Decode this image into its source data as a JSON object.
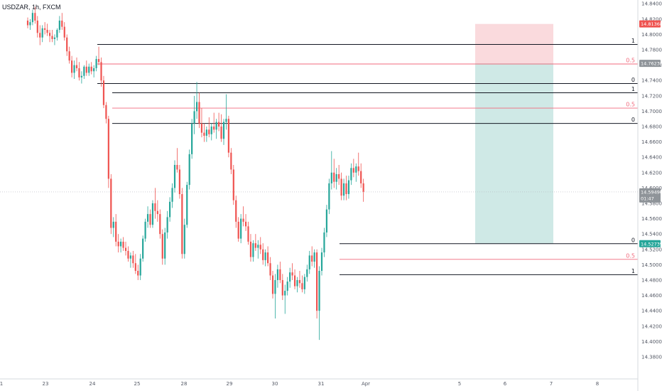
{
  "header": {
    "symbol": "USDZAR, 1h, FXCM"
  },
  "colors": {
    "up": "#26a69a",
    "down": "#ef5350",
    "fib_line": "#131722",
    "fib_mid": "#f0697c",
    "stop_zone": "#fadadd",
    "target_zone": "#cfe9e6",
    "price_badge": "#8f9499"
  },
  "chart_data": {
    "type": "candlestick",
    "x_ticks": [
      "1",
      "23",
      "24",
      "25",
      "28",
      "29",
      "30",
      "31",
      "Apr",
      "5",
      "6",
      "7",
      "8"
    ],
    "y_ticks": [
      "14.84000",
      "14.82000",
      "14.80000",
      "14.78000",
      "14.76000",
      "14.74000",
      "14.72000",
      "14.70000",
      "14.68000",
      "14.66000",
      "14.64000",
      "14.62000",
      "14.60000",
      "14.58000",
      "14.56000",
      "14.54000",
      "14.52000",
      "14.50000",
      "14.48000",
      "14.46000",
      "14.44000",
      "14.42000",
      "14.40000",
      "14.38000"
    ],
    "ylim": [
      14.373,
      14.843
    ],
    "current_price": {
      "value": "14.59490",
      "countdown": "01:47"
    },
    "position": {
      "stop": "14.81368",
      "entry": "14.76236",
      "target": "14.52739"
    },
    "fib_levels": [
      {
        "label": "1",
        "price": 14.787
      },
      {
        "label": "0.5",
        "price": 14.7615
      },
      {
        "label": "0",
        "price": 14.736
      },
      {
        "label": "1",
        "price": 14.724
      },
      {
        "label": "0.5",
        "price": 14.704
      },
      {
        "label": "0",
        "price": 14.684
      },
      {
        "label": "0",
        "price": 14.5274
      },
      {
        "label": "0.5",
        "price": 14.507
      },
      {
        "label": "1",
        "price": 14.487
      }
    ],
    "candles": [
      [
        14.818,
        14.822,
        14.808,
        14.812
      ],
      [
        14.812,
        14.82,
        14.806,
        14.816
      ],
      [
        14.816,
        14.832,
        14.812,
        14.828
      ],
      [
        14.828,
        14.836,
        14.814,
        14.818
      ],
      [
        14.818,
        14.824,
        14.796,
        14.802
      ],
      [
        14.802,
        14.812,
        14.786,
        14.796
      ],
      [
        14.796,
        14.812,
        14.79,
        14.808
      ],
      [
        14.808,
        14.816,
        14.8,
        14.806
      ],
      [
        14.806,
        14.814,
        14.798,
        14.802
      ],
      [
        14.802,
        14.806,
        14.79,
        14.798
      ],
      [
        14.798,
        14.806,
        14.79,
        14.794
      ],
      [
        14.794,
        14.8,
        14.786,
        14.796
      ],
      [
        14.796,
        14.808,
        14.792,
        14.806
      ],
      [
        14.806,
        14.824,
        14.802,
        14.818
      ],
      [
        14.818,
        14.828,
        14.806,
        14.81
      ],
      [
        14.81,
        14.816,
        14.792,
        14.796
      ],
      [
        14.796,
        14.8,
        14.772,
        14.778
      ],
      [
        14.778,
        14.784,
        14.762,
        14.766
      ],
      [
        14.766,
        14.772,
        14.744,
        14.75
      ],
      [
        14.75,
        14.766,
        14.742,
        14.76
      ],
      [
        14.76,
        14.77,
        14.752,
        14.756
      ],
      [
        14.756,
        14.764,
        14.74,
        14.744
      ],
      [
        14.744,
        14.752,
        14.736,
        14.746
      ],
      [
        14.746,
        14.76,
        14.742,
        14.758
      ],
      [
        14.758,
        14.766,
        14.746,
        14.75
      ],
      [
        14.75,
        14.762,
        14.746,
        14.758
      ],
      [
        14.758,
        14.764,
        14.748,
        14.752
      ],
      [
        14.752,
        14.76,
        14.744,
        14.756
      ],
      [
        14.756,
        14.772,
        14.752,
        14.768
      ],
      [
        14.768,
        14.784,
        14.76,
        14.764
      ],
      [
        14.764,
        14.77,
        14.732,
        14.74
      ],
      [
        14.74,
        14.746,
        14.704,
        14.708
      ],
      [
        14.708,
        14.712,
        14.684,
        14.69
      ],
      [
        14.69,
        14.694,
        14.6,
        14.612
      ],
      [
        14.612,
        14.618,
        14.54,
        14.548
      ],
      [
        14.548,
        14.562,
        14.536,
        14.556
      ],
      [
        14.556,
        14.566,
        14.524,
        14.53
      ],
      [
        14.53,
        14.54,
        14.516,
        14.524
      ],
      [
        14.524,
        14.534,
        14.516,
        14.53
      ],
      [
        14.53,
        14.536,
        14.518,
        14.522
      ],
      [
        14.522,
        14.53,
        14.512,
        14.518
      ],
      [
        14.518,
        14.524,
        14.504,
        14.508
      ],
      [
        14.508,
        14.516,
        14.496,
        14.512
      ],
      [
        14.512,
        14.518,
        14.496,
        14.502
      ],
      [
        14.502,
        14.514,
        14.488,
        14.492
      ],
      [
        14.492,
        14.5,
        14.48,
        14.486
      ],
      [
        14.486,
        14.514,
        14.48,
        14.508
      ],
      [
        14.508,
        14.538,
        14.504,
        14.534
      ],
      [
        14.534,
        14.56,
        14.53,
        14.556
      ],
      [
        14.556,
        14.576,
        14.548,
        14.566
      ],
      [
        14.566,
        14.572,
        14.548,
        14.552
      ],
      [
        14.552,
        14.584,
        14.548,
        14.58
      ],
      [
        14.58,
        14.6,
        14.56,
        14.57
      ],
      [
        14.57,
        14.584,
        14.556,
        14.566
      ],
      [
        14.566,
        14.572,
        14.534,
        14.54
      ],
      [
        14.54,
        14.546,
        14.5,
        14.508
      ],
      [
        14.508,
        14.548,
        14.5,
        14.542
      ],
      [
        14.542,
        14.57,
        14.534,
        14.562
      ],
      [
        14.562,
        14.588,
        14.556,
        14.582
      ],
      [
        14.582,
        14.606,
        14.574,
        14.6
      ],
      [
        14.6,
        14.636,
        14.594,
        14.63
      ],
      [
        14.63,
        14.652,
        14.62,
        14.624
      ],
      [
        14.624,
        14.63,
        14.586,
        14.592
      ],
      [
        14.592,
        14.6,
        14.508,
        14.514
      ],
      [
        14.514,
        14.56,
        14.508,
        14.552
      ],
      [
        14.552,
        14.608,
        14.548,
        14.604
      ],
      [
        14.604,
        14.65,
        14.598,
        14.644
      ],
      [
        14.644,
        14.69,
        14.638,
        14.684
      ],
      [
        14.684,
        14.72,
        14.67,
        14.7
      ],
      [
        14.7,
        14.738,
        14.69,
        14.712
      ],
      [
        14.712,
        14.724,
        14.678,
        14.684
      ],
      [
        14.684,
        14.704,
        14.666,
        14.672
      ],
      [
        14.672,
        14.684,
        14.66,
        14.668
      ],
      [
        14.668,
        14.68,
        14.66,
        14.676
      ],
      [
        14.676,
        14.692,
        14.666,
        14.67
      ],
      [
        14.67,
        14.684,
        14.662,
        14.68
      ],
      [
        14.68,
        14.698,
        14.672,
        14.676
      ],
      [
        14.676,
        14.69,
        14.664,
        14.686
      ],
      [
        14.686,
        14.698,
        14.674,
        14.68
      ],
      [
        14.68,
        14.696,
        14.66,
        14.664
      ],
      [
        14.664,
        14.69,
        14.656,
        14.686
      ],
      [
        14.686,
        14.722,
        14.676,
        14.69
      ],
      [
        14.69,
        14.694,
        14.64,
        14.646
      ],
      [
        14.646,
        14.652,
        14.618,
        14.624
      ],
      [
        14.624,
        14.63,
        14.578,
        14.584
      ],
      [
        14.584,
        14.59,
        14.548,
        14.556
      ],
      [
        14.556,
        14.562,
        14.53,
        14.534
      ],
      [
        14.534,
        14.566,
        14.528,
        14.56
      ],
      [
        14.56,
        14.576,
        14.55,
        14.556
      ],
      [
        14.556,
        14.566,
        14.544,
        14.55
      ],
      [
        14.55,
        14.556,
        14.526,
        14.53
      ],
      [
        14.53,
        14.54,
        14.504,
        14.51
      ],
      [
        14.51,
        14.532,
        14.504,
        14.528
      ],
      [
        14.528,
        14.54,
        14.518,
        14.522
      ],
      [
        14.522,
        14.532,
        14.508,
        14.526
      ],
      [
        14.526,
        14.536,
        14.514,
        14.52
      ],
      [
        14.52,
        14.528,
        14.5,
        14.506
      ],
      [
        14.506,
        14.52,
        14.498,
        14.516
      ],
      [
        14.516,
        14.524,
        14.498,
        14.502
      ],
      [
        14.502,
        14.51,
        14.48,
        14.486
      ],
      [
        14.486,
        14.492,
        14.456,
        14.462
      ],
      [
        14.462,
        14.488,
        14.43,
        14.48
      ],
      [
        14.48,
        14.5,
        14.47,
        14.494
      ],
      [
        14.494,
        14.504,
        14.476,
        14.48
      ],
      [
        14.48,
        14.488,
        14.454,
        14.46
      ],
      [
        14.46,
        14.474,
        14.436,
        14.466
      ],
      [
        14.466,
        14.484,
        14.46,
        14.478
      ],
      [
        14.478,
        14.496,
        14.47,
        14.49
      ],
      [
        14.49,
        14.502,
        14.48,
        14.486
      ],
      [
        14.486,
        14.494,
        14.468,
        14.472
      ],
      [
        14.472,
        14.484,
        14.464,
        14.48
      ],
      [
        14.48,
        14.492,
        14.47,
        14.476
      ],
      [
        14.476,
        14.486,
        14.464,
        14.468
      ],
      [
        14.468,
        14.488,
        14.462,
        14.484
      ],
      [
        14.484,
        14.5,
        14.478,
        14.494
      ],
      [
        14.494,
        14.518,
        14.488,
        14.512
      ],
      [
        14.512,
        14.524,
        14.498,
        14.504
      ],
      [
        14.504,
        14.52,
        14.496,
        14.516
      ],
      [
        14.516,
        14.52,
        14.43,
        14.44
      ],
      [
        14.44,
        14.498,
        14.402,
        14.492
      ],
      [
        14.492,
        14.522,
        14.486,
        14.516
      ],
      [
        14.516,
        14.548,
        14.51,
        14.542
      ],
      [
        14.542,
        14.578,
        14.536,
        14.572
      ],
      [
        14.572,
        14.612,
        14.566,
        14.606
      ],
      [
        14.606,
        14.648,
        14.598,
        14.62
      ],
      [
        14.62,
        14.638,
        14.6,
        14.608
      ],
      [
        14.608,
        14.626,
        14.598,
        14.618
      ],
      [
        14.618,
        14.63,
        14.604,
        14.612
      ],
      [
        14.612,
        14.62,
        14.584,
        14.59
      ],
      [
        14.59,
        14.612,
        14.584,
        14.606
      ],
      [
        14.606,
        14.616,
        14.584,
        14.592
      ],
      [
        14.592,
        14.616,
        14.586,
        14.61
      ],
      [
        14.61,
        14.632,
        14.604,
        14.626
      ],
      [
        14.626,
        14.638,
        14.614,
        14.62
      ],
      [
        14.62,
        14.632,
        14.608,
        14.628
      ],
      [
        14.628,
        14.646,
        14.616,
        14.622
      ],
      [
        14.622,
        14.632,
        14.6,
        14.606
      ],
      [
        14.606,
        14.612,
        14.582,
        14.595
      ]
    ]
  }
}
